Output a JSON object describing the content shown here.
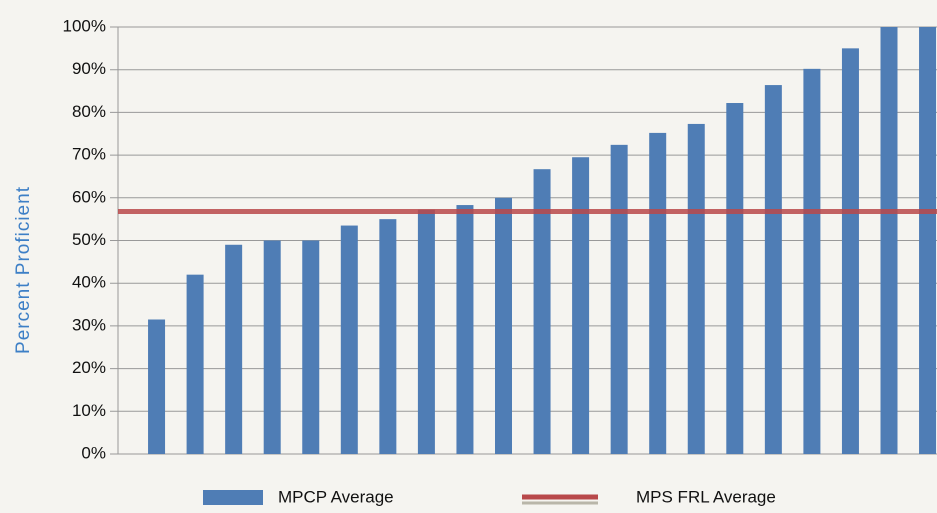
{
  "chart_data": {
    "type": "bar",
    "y_label": "Percent Proficient",
    "categories": [
      null,
      null,
      null,
      null,
      null,
      null,
      null,
      null,
      null,
      null,
      null,
      null,
      null,
      null,
      null,
      null,
      null,
      null,
      null,
      null,
      null
    ],
    "series": [
      {
        "name": "MPCP Average",
        "color": "#4f7db5",
        "values": [
          31.5,
          42,
          49,
          50,
          50,
          53.5,
          55,
          57.2,
          58.3,
          60,
          66.7,
          69.5,
          72.4,
          75.2,
          77.3,
          82.2,
          86.4,
          90.2,
          95,
          100,
          100
        ]
      }
    ],
    "hline": {
      "name": "MPS FRL Average",
      "color": "#b8484a",
      "value": 56.8
    },
    "ylim": [
      0,
      100
    ],
    "yticks": [
      {
        "value": 0,
        "label": "0%"
      },
      {
        "value": 10,
        "label": "10%"
      },
      {
        "value": 20,
        "label": "20%"
      },
      {
        "value": 30,
        "label": "30%"
      },
      {
        "value": 40,
        "label": "40%"
      },
      {
        "value": 50,
        "label": "50%"
      },
      {
        "value": 60,
        "label": "60%"
      },
      {
        "value": 70,
        "label": "70%"
      },
      {
        "value": 80,
        "label": "80%"
      },
      {
        "value": 90,
        "label": "90%"
      },
      {
        "value": 100,
        "label": "100%"
      }
    ],
    "grid": true
  }
}
